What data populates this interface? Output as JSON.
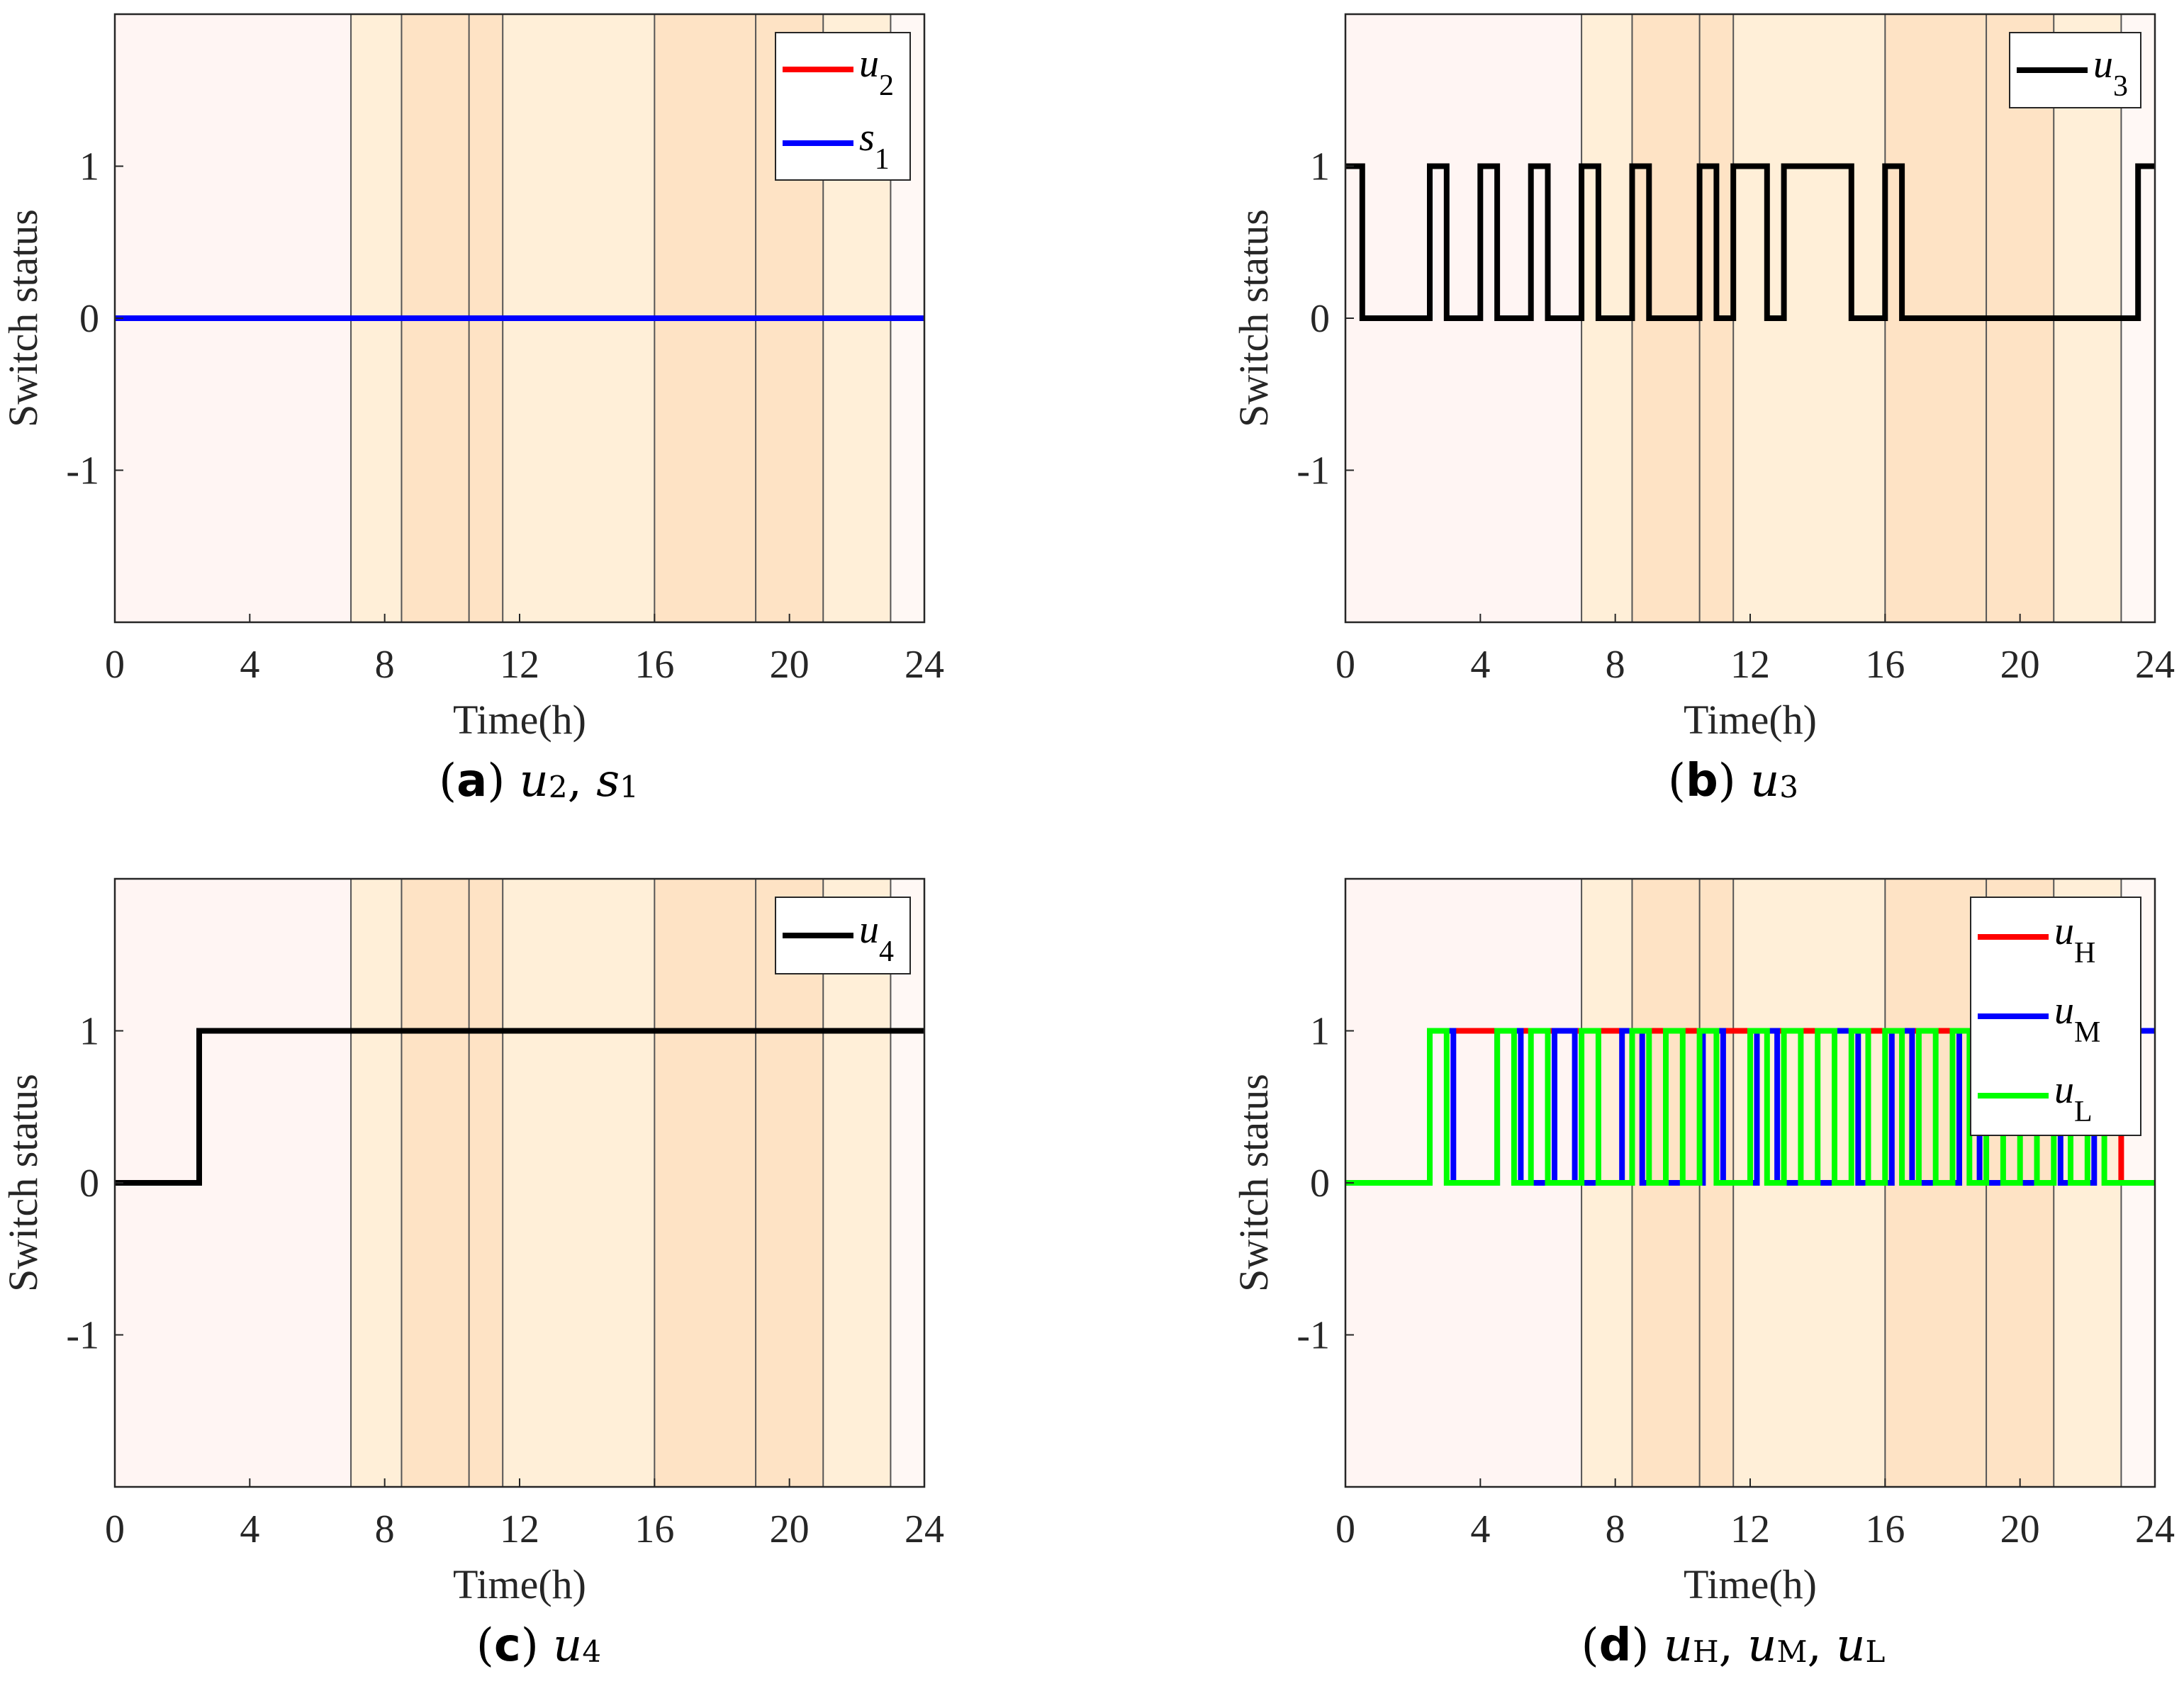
{
  "colors": {
    "night": "#fff5f3",
    "shoulder": "#ffefd8",
    "peak": "#fee3c5",
    "late": "#fff8f5",
    "red": "#ff0000",
    "blue": "#0000ff",
    "green": "#00ff00",
    "black": "#000000"
  },
  "common": {
    "ylabel": "Switch status",
    "xlabel": "Time(h)",
    "xticks": [
      "0",
      "4",
      "8",
      "12",
      "16",
      "20",
      "24"
    ],
    "yticks": [
      "1",
      "0",
      "-1"
    ],
    "xlim": [
      0,
      24
    ],
    "ylim": [
      -2,
      2
    ],
    "price_bands": [
      {
        "from": 0,
        "to": 7,
        "level": "night"
      },
      {
        "from": 7,
        "to": 8.5,
        "level": "shoulder"
      },
      {
        "from": 8.5,
        "to": 10.5,
        "level": "peak"
      },
      {
        "from": 10.5,
        "to": 11.5,
        "level": "peak"
      },
      {
        "from": 11.5,
        "to": 16,
        "level": "shoulder"
      },
      {
        "from": 16,
        "to": 19,
        "level": "peak"
      },
      {
        "from": 19,
        "to": 21,
        "level": "peak"
      },
      {
        "from": 21,
        "to": 23,
        "level": "shoulder"
      },
      {
        "from": 23,
        "to": 24,
        "level": "late"
      }
    ]
  },
  "captions": {
    "a": {
      "letter": "a",
      "v1": "u",
      "s1": "2",
      "v2": "s",
      "s2": "1"
    },
    "b": {
      "letter": "b",
      "v1": "u",
      "s1": "3"
    },
    "c": {
      "letter": "c",
      "v1": "u",
      "s1": "4"
    },
    "d": {
      "letter": "d",
      "v1": "u",
      "s1": "H",
      "v2": "u",
      "s2": "M",
      "v3": "u",
      "s3": "L"
    }
  },
  "chart_data": [
    {
      "id": "a",
      "type": "line",
      "step": true,
      "xlabel": "Time(h)",
      "ylabel": "Switch status",
      "xlim": [
        0,
        24
      ],
      "ylim": [
        -2,
        2
      ],
      "series": [
        {
          "name": "u",
          "sub": "2",
          "color": "#ff0000",
          "x": [
            0,
            24
          ],
          "y": [
            0,
            0
          ]
        },
        {
          "name": "s",
          "sub": "1",
          "color": "#0000ff",
          "x": [
            0,
            24
          ],
          "y": [
            0,
            0
          ]
        }
      ]
    },
    {
      "id": "b",
      "type": "line",
      "step": true,
      "xlabel": "Time(h)",
      "ylabel": "Switch status",
      "xlim": [
        0,
        24
      ],
      "ylim": [
        -2,
        2
      ],
      "series": [
        {
          "name": "u",
          "sub": "3",
          "color": "#000000",
          "x": [
            0,
            0.5,
            2.5,
            3,
            4,
            4.5,
            5.5,
            6,
            7,
            7.5,
            8.5,
            9,
            10.5,
            11,
            11.5,
            12.5,
            13,
            15,
            16,
            16.5,
            23.5,
            24
          ],
          "y": [
            1,
            0,
            1,
            0,
            1,
            0,
            1,
            0,
            1,
            0,
            1,
            0,
            1,
            0,
            1,
            0,
            1,
            0,
            1,
            0,
            1,
            1
          ]
        }
      ]
    },
    {
      "id": "c",
      "type": "line",
      "step": true,
      "xlabel": "Time(h)",
      "ylabel": "Switch status",
      "xlim": [
        0,
        24
      ],
      "ylim": [
        -2,
        2
      ],
      "series": [
        {
          "name": "u",
          "sub": "4",
          "color": "#000000",
          "x": [
            0,
            2.5,
            24
          ],
          "y": [
            0,
            1,
            1
          ]
        }
      ]
    },
    {
      "id": "d",
      "type": "line",
      "step": true,
      "xlabel": "Time(h)",
      "ylabel": "Switch status",
      "xlim": [
        0,
        24
      ],
      "ylim": [
        -2,
        2
      ],
      "series": [
        {
          "name": "u",
          "sub": "H",
          "color": "#ff0000",
          "x": [
            0,
            2.5,
            23,
            24
          ],
          "y": [
            0,
            1,
            0,
            0
          ]
        },
        {
          "name": "u",
          "sub": "M",
          "color": "#0000ff",
          "x": [
            0,
            2.5,
            3.2,
            4.5,
            5.2,
            6.2,
            6.8,
            8.2,
            8.8,
            10.6,
            11.2,
            12.2,
            12.8,
            14.5,
            15.2,
            16.2,
            16.8,
            18.2,
            18.8,
            20.5,
            21.2,
            22.2,
            22.8,
            24
          ],
          "y": [
            0,
            1,
            0,
            1,
            0,
            1,
            0,
            1,
            0,
            1,
            0,
            1,
            0,
            1,
            0,
            1,
            0,
            1,
            0,
            1,
            0,
            1,
            1,
            1
          ]
        },
        {
          "name": "u",
          "sub": "L",
          "color": "#00ff00",
          "x": [
            0,
            2.5,
            3,
            4.5,
            5,
            5.5,
            6,
            7,
            7.5,
            8.5,
            9,
            9.5,
            10,
            10.5,
            11,
            12,
            12.5,
            13,
            13.5,
            14,
            14.5,
            15,
            15.5,
            16,
            16.5,
            17,
            17.5,
            18,
            18.5,
            19,
            19.5,
            20,
            20.5,
            21,
            21.5,
            22,
            22.5,
            23,
            24
          ],
          "y": [
            0,
            1,
            0,
            1,
            0,
            1,
            0,
            1,
            0,
            1,
            0,
            1,
            0,
            1,
            0,
            1,
            0,
            1,
            0,
            1,
            0,
            1,
            0,
            1,
            0,
            1,
            0,
            1,
            0,
            1,
            0,
            1,
            0,
            1,
            0,
            1,
            0,
            0,
            0
          ]
        }
      ]
    }
  ]
}
